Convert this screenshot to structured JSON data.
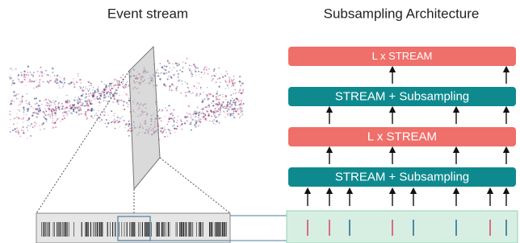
{
  "titles": [
    "Event stream",
    "Subsampling Architecture"
  ],
  "blocks": [
    {
      "label": "L x STREAM",
      "color": "#ef6f6a"
    },
    {
      "label": "STREAM + Subsampling",
      "color": "#0e8a8f"
    },
    {
      "label": "L x STREAM",
      "color": "#ef6f6a"
    },
    {
      "label": "STREAM + Subsampling",
      "color": "#0e8a8f"
    }
  ]
}
